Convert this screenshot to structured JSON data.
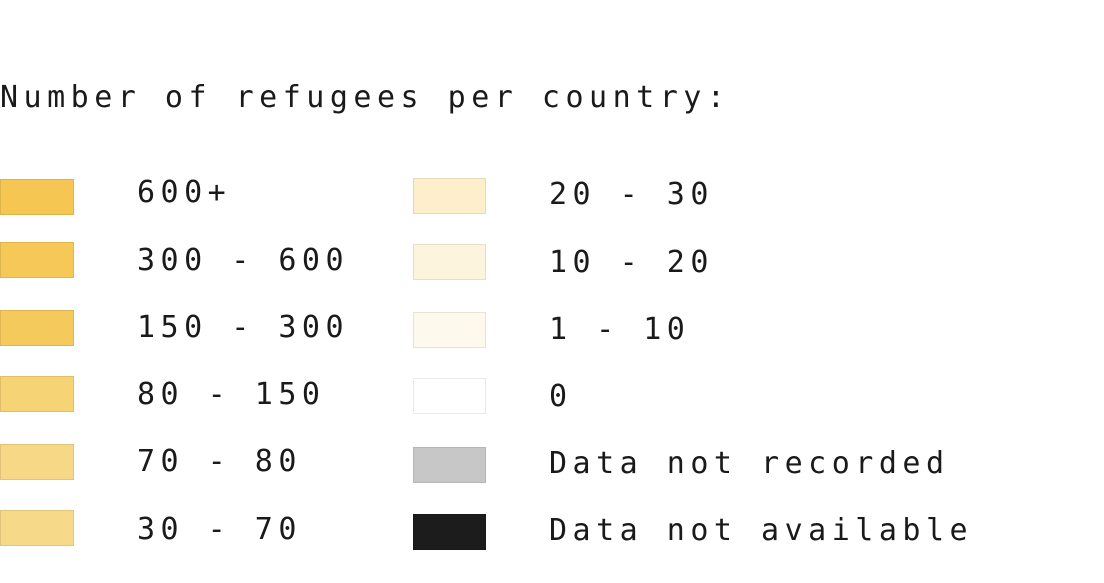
{
  "legend": {
    "title": "Number of refugees per country:",
    "left_column": [
      {
        "label": "600+",
        "color": "#f5c652"
      },
      {
        "label": "300 - 600",
        "color": "#f5c857"
      },
      {
        "label": "150 - 300",
        "color": "#f5ca5c"
      },
      {
        "label": "80 - 150",
        "color": "#f6d374"
      },
      {
        "label": "70 - 80",
        "color": "#f7d887"
      },
      {
        "label": "30 - 70",
        "color": "#f7d98a"
      }
    ],
    "right_column": [
      {
        "label": "20 - 30",
        "color": "#fdefcc"
      },
      {
        "label": "10 - 20",
        "color": "#fdf4de"
      },
      {
        "label": "1 - 10",
        "color": "#fdf9ed"
      },
      {
        "label": "0",
        "color": "#ffffff"
      },
      {
        "label": "Data not recorded",
        "color": "#c7c7c7"
      },
      {
        "label": "Data not available",
        "color": "#1c1c1c"
      }
    ]
  }
}
